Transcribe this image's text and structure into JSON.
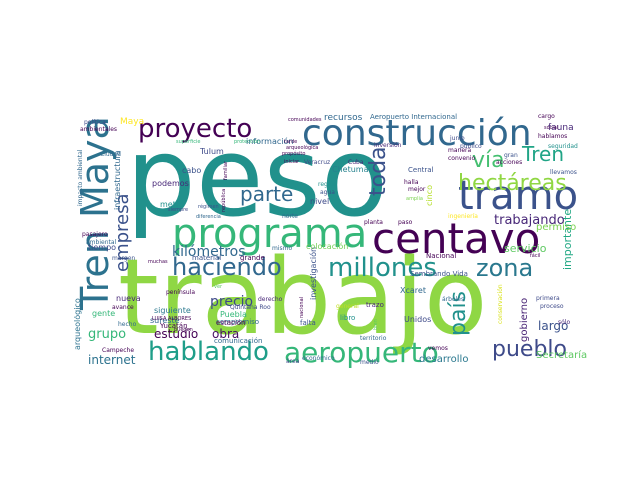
{
  "cloud": {
    "words": [
      {
        "text": "trabajo",
        "color": "#8fd744"
      },
      {
        "text": "peso",
        "color": "#21918c"
      },
      {
        "text": "centavo",
        "color": "#440154"
      },
      {
        "text": "construcción",
        "color": "#31688e"
      },
      {
        "text": "programa",
        "color": "#35b779"
      },
      {
        "text": "tramo",
        "color": "#3b528b"
      },
      {
        "text": "Tren Maya",
        "color": "#2c728e"
      },
      {
        "text": "aeropuerto",
        "color": "#35b779"
      },
      {
        "text": "hablando",
        "color": "#1f9e89"
      },
      {
        "text": "haciendo",
        "color": "#31688e"
      },
      {
        "text": "proyecto",
        "color": "#440154"
      },
      {
        "text": "millones",
        "color": "#21918c"
      },
      {
        "text": "hectáreas",
        "color": "#90d743"
      },
      {
        "text": "pueblo",
        "color": "#3e4a89"
      },
      {
        "text": "parte",
        "color": "#31688e"
      },
      {
        "text": "vía",
        "color": "#44bf70"
      },
      {
        "text": "Tren",
        "color": "#20a486"
      },
      {
        "text": "zona",
        "color": "#2a788e"
      },
      {
        "text": "toda",
        "color": "#3b528b"
      },
      {
        "text": "país",
        "color": "#21918c"
      },
      {
        "text": "empresa",
        "color": "#3b528b"
      },
      {
        "text": "trabajando",
        "color": "#482878"
      },
      {
        "text": "kilómetros",
        "color": "#31688e"
      },
      {
        "text": "precio",
        "color": "#3e4a89"
      },
      {
        "text": "estudio",
        "color": "#440154"
      },
      {
        "text": "obra",
        "color": "#471063"
      },
      {
        "text": "internet",
        "color": "#2c728e"
      },
      {
        "text": "grupo",
        "color": "#35b779"
      },
      {
        "text": "servicio",
        "color": "#5ec962"
      },
      {
        "text": "importante",
        "color": "#22a884"
      },
      {
        "text": "largo",
        "color": "#3b528b"
      },
      {
        "text": "gobierno",
        "color": "#482475"
      },
      {
        "text": "permiso",
        "color": "#7ad151"
      },
      {
        "text": "Secretaría",
        "color": "#5ec962"
      },
      {
        "text": "desarrollo",
        "color": "#2a788e"
      },
      {
        "text": "recursos",
        "color": "#31688e"
      },
      {
        "text": "Maya",
        "color": "#fde725"
      },
      {
        "text": "cabo",
        "color": "#3b528b"
      },
      {
        "text": "metro",
        "color": "#21918c"
      },
      {
        "text": "podemos",
        "color": "#482878"
      },
      {
        "text": "Tulum",
        "color": "#3e4a89"
      },
      {
        "text": "información",
        "color": "#31688e"
      },
      {
        "text": "Chetumal",
        "color": "#26828e"
      },
      {
        "text": "nivel",
        "color": "#3e4a89"
      },
      {
        "text": "Unidos",
        "color": "#3e4a89"
      },
      {
        "text": "Xcaret",
        "color": "#31688e"
      },
      {
        "text": "investigación",
        "color": "#3b528b"
      },
      {
        "text": "colocación",
        "color": "#73d056"
      },
      {
        "text": "cinco",
        "color": "#b5de2b"
      },
      {
        "text": "Puebla",
        "color": "#35b779"
      },
      {
        "text": "siguiente",
        "color": "#2a788e"
      },
      {
        "text": "sureste",
        "color": "#31688e"
      },
      {
        "text": "arqueológico",
        "color": "#2c728e"
      },
      {
        "text": "infraestructura",
        "color": "#31688e"
      },
      {
        "text": "tiempo",
        "color": "#3e4a89"
      },
      {
        "text": "gente",
        "color": "#35b779"
      },
      {
        "text": "nueva",
        "color": "#482878"
      },
      {
        "text": "Sembrando Vida",
        "color": "#3b528b"
      },
      {
        "text": "Aeropuerto Internacional",
        "color": "#31688e"
      },
      {
        "text": "Nacional",
        "color": "#440154"
      },
      {
        "text": "Central",
        "color": "#3b528b"
      },
      {
        "text": "compromiso",
        "color": "#31688e"
      },
      {
        "text": "trazo",
        "color": "#482878"
      },
      {
        "text": "estación",
        "color": "#440154"
      },
      {
        "text": "Yucatán",
        "color": "#440154"
      },
      {
        "text": "comunicación",
        "color": "#31688e"
      },
      {
        "text": "material",
        "color": "#3b528b"
      },
      {
        "text": "grande",
        "color": "#440154"
      },
      {
        "text": "falta",
        "color": "#3b528b"
      },
      {
        "text": "libro",
        "color": "#21918c"
      },
      {
        "text": "fauna",
        "color": "#482878"
      },
      {
        "text": "cargo",
        "color": "#440154"
      },
      {
        "text": "seguridad",
        "color": "#21918c"
      },
      {
        "text": "política",
        "color": "#3e4a89"
      },
      {
        "text": "ambientales",
        "color": "#440154"
      },
      {
        "text": "impacto ambiental",
        "color": "#31688e"
      },
      {
        "text": "Ciudad",
        "color": "#31688e"
      },
      {
        "text": "pasajero",
        "color": "#440154"
      },
      {
        "text": "margen",
        "color": "#3b528b"
      },
      {
        "text": "ambiental",
        "color": "#31688e"
      },
      {
        "text": "región",
        "color": "#21918c"
      },
      {
        "text": "norte",
        "color": "#31688e"
      },
      {
        "text": "Veracruz",
        "color": "#3e4a89"
      },
      {
        "text": "agua",
        "color": "#3b528b"
      },
      {
        "text": "mismo",
        "color": "#31688e"
      },
      {
        "text": "general",
        "color": "#c2df23"
      },
      {
        "text": "planta",
        "color": "#440154"
      },
      {
        "text": "paso",
        "color": "#440154"
      },
      {
        "text": "proceso",
        "color": "#3e4a89"
      },
      {
        "text": "primera",
        "color": "#3e4a89"
      },
      {
        "text": "árboles",
        "color": "#31688e"
      },
      {
        "text": "acciones",
        "color": "#440154"
      },
      {
        "text": "conservación",
        "color": "#d8e219"
      },
      {
        "text": "derecho",
        "color": "#482878"
      },
      {
        "text": "económico",
        "color": "#31688e"
      },
      {
        "text": "medio",
        "color": "#3b528b"
      },
      {
        "text": "área",
        "color": "#3e4a89"
      },
      {
        "text": "vemos",
        "color": "#440154"
      },
      {
        "text": "territorio",
        "color": "#31688e"
      },
      {
        "text": "Campeche",
        "color": "#440154"
      },
      {
        "text": "península",
        "color": "#440154"
      },
      {
        "text": "avance",
        "color": "#440154"
      },
      {
        "text": "hecho",
        "color": "#31688e"
      },
      {
        "text": "Quintana Roo",
        "color": "#3e4a89"
      },
      {
        "text": "LUISA ALBORES",
        "color": "#440154"
      },
      {
        "text": "pueden",
        "color": "#440154"
      },
      {
        "text": "ingeniería",
        "color": "#fde725"
      },
      {
        "text": "mejor",
        "color": "#440154"
      },
      {
        "text": "halla",
        "color": "#440154"
      },
      {
        "text": "Cuba",
        "color": "#482878"
      },
      {
        "text": "inversión",
        "color": "#482878"
      },
      {
        "text": "público",
        "color": "#3e4a89"
      },
      {
        "text": "llevamos",
        "color": "#3b528b"
      },
      {
        "text": "hablamos",
        "color": "#440154"
      },
      {
        "text": "junio",
        "color": "#3e4a89"
      },
      {
        "text": "gran",
        "color": "#3b528b"
      },
      {
        "text": "manera",
        "color": "#440154"
      },
      {
        "text": "convenio",
        "color": "#440154"
      },
      {
        "text": "sólo",
        "color": "#482878"
      },
      {
        "text": "comunidades",
        "color": "#440154"
      },
      {
        "text": "protección",
        "color": "#35b779"
      },
      {
        "text": "iniciar",
        "color": "#440154"
      },
      {
        "text": "propósito",
        "color": "#440154"
      },
      {
        "text": "siempre",
        "color": "#3e4a89"
      },
      {
        "text": "diferencia",
        "color": "#31688e"
      },
      {
        "text": "régimen",
        "color": "#3b528b"
      },
      {
        "text": "república",
        "color": "#440154"
      },
      {
        "text": "familiar",
        "color": "#440154"
      },
      {
        "text": "tarde",
        "color": "#440154"
      },
      {
        "text": "superficie",
        "color": "#35b779"
      },
      {
        "text": "amplia",
        "color": "#7ad151"
      },
      {
        "text": "muchas",
        "color": "#440154"
      },
      {
        "text": "ver",
        "color": "#5ec962"
      },
      {
        "text": "social",
        "color": "#440154"
      },
      {
        "text": "bien",
        "color": "#5ec962"
      },
      {
        "text": "nacional",
        "color": "#440154"
      },
      {
        "text": "fácil",
        "color": "#440154"
      },
      {
        "text": "arqueológica",
        "color": "#440154"
      }
    ]
  }
}
